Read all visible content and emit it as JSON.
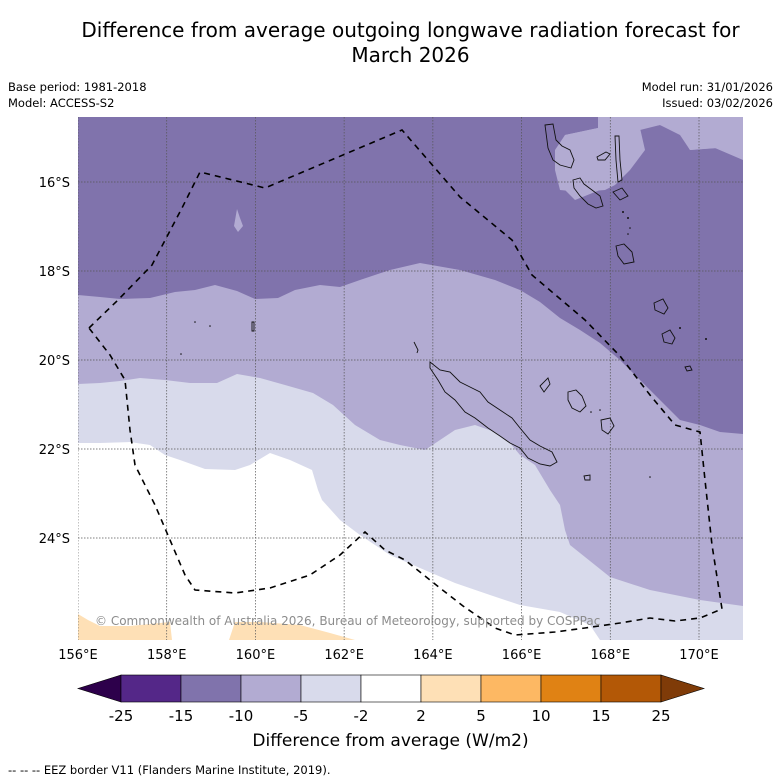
{
  "title": "Difference from average outgoing longwave radiation forecast for March 2026",
  "title_lines": [
    "Difference from average outgoing longwave radiation forecast for",
    "March 2026"
  ],
  "meta_left": {
    "base_period": "Base period: 1981-2018",
    "model": "Model: ACCESS-S2"
  },
  "meta_right": {
    "model_run": "Model run: 31/01/2026",
    "issued": "Issued: 03/02/2026"
  },
  "map": {
    "lon_range": [
      156,
      171
    ],
    "lat_range": [
      -14.8,
      -26.6
    ],
    "x_ticks": [
      "156°E",
      "158°E",
      "160°E",
      "162°E",
      "164°E",
      "166°E",
      "168°E",
      "170°E"
    ],
    "x_tick_values": [
      156,
      158,
      160,
      162,
      164,
      166,
      168,
      170
    ],
    "y_ticks": [
      "16°S",
      "18°S",
      "20°S",
      "22°S",
      "24°S"
    ],
    "y_tick_values": [
      -16,
      -18,
      -20,
      -22,
      -24
    ],
    "gridlines": true,
    "copyright": "© Commonwealth of Australia 2026, Bureau of Meteorology, supported by COSPPac",
    "eez_line_style": "dashed"
  },
  "colorbar": {
    "title": "Difference from average (W/m2)",
    "ticks": [
      "-25",
      "-15",
      "-10",
      "-5",
      "-2",
      "2",
      "5",
      "10",
      "15",
      "25"
    ],
    "bins": [
      {
        "range": "<-25",
        "color": "#2d004b"
      },
      {
        "range": "-25 to -15",
        "color": "#542788"
      },
      {
        "range": "-15 to -10",
        "color": "#8073ac"
      },
      {
        "range": "-10 to -5",
        "color": "#b2abd2"
      },
      {
        "range": "-5 to -2",
        "color": "#d8daeb"
      },
      {
        "range": "-2 to 2",
        "color": "#ffffff"
      },
      {
        "range": "2 to 5",
        "color": "#fee0b6"
      },
      {
        "range": "5 to 10",
        "color": "#fdb863"
      },
      {
        "range": "10 to 15",
        "color": "#e08214"
      },
      {
        "range": "15 to 25",
        "color": "#b35806"
      },
      {
        "range": ">25",
        "color": "#7f3b08"
      }
    ]
  },
  "footnote": "--  --  -- EEZ border V11 (Flanders Marine Institute, 2019)."
}
